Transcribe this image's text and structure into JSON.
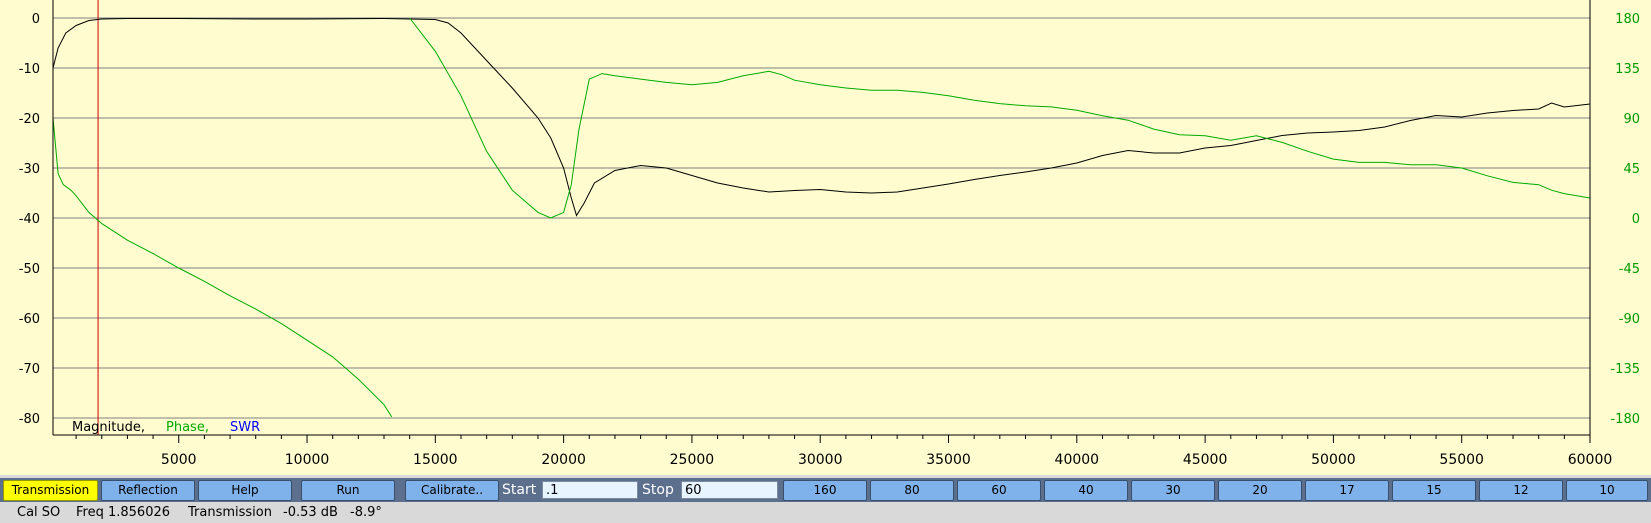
{
  "chart_data": {
    "type": "line",
    "title": "",
    "xlabel": "",
    "ylabel": "",
    "xlim": [
      100,
      60000
    ],
    "ylim": [
      -82,
      0
    ],
    "y2lim": [
      -184,
      184
    ],
    "x_ticks": [
      5000,
      10000,
      15000,
      20000,
      25000,
      30000,
      35000,
      40000,
      45000,
      50000,
      55000,
      60000
    ],
    "x_tick_labels": [
      "5000",
      "10000",
      "15000",
      "20000",
      "25000",
      "30000",
      "35000",
      "40000",
      "45000",
      "50000",
      "55000",
      "60000"
    ],
    "y_ticks": [
      0,
      -10,
      -20,
      -30,
      -40,
      -50,
      -60,
      -70,
      -80
    ],
    "y_tick_labels": [
      "0",
      "-10",
      "-20",
      "-30",
      "-40",
      "-50",
      "-60",
      "-70",
      "-80"
    ],
    "y2_ticks": [
      180,
      135,
      90,
      45,
      0,
      -45,
      -90,
      -135,
      -180
    ],
    "y2_tick_labels": [
      "180",
      "135",
      "90",
      "45",
      "0",
      "-45",
      "-90",
      "-135",
      "-180"
    ],
    "grid": true,
    "marker_x": 1856,
    "legend": [
      {
        "label": "Magnitude,",
        "color": "#000000"
      },
      {
        "label": "Phase,",
        "color": "#00aa00"
      },
      {
        "label": "SWR",
        "color": "#0000ff"
      }
    ],
    "series": [
      {
        "name": "Magnitude",
        "color": "#000000",
        "axis": "left",
        "x": [
          100,
          300,
          600,
          1000,
          1500,
          2000,
          3000,
          5000,
          8000,
          10000,
          13000,
          15000,
          15500,
          16000,
          17000,
          18000,
          19000,
          19500,
          20000,
          20300,
          20500,
          20800,
          21200,
          22000,
          23000,
          24000,
          25000,
          26000,
          27000,
          28000,
          29000,
          30000,
          31000,
          32000,
          33000,
          34000,
          35000,
          36000,
          37000,
          38000,
          39000,
          40000,
          41000,
          42000,
          43000,
          44000,
          45000,
          46000,
          47000,
          48000,
          49000,
          50000,
          51000,
          52000,
          53000,
          54000,
          55000,
          56000,
          57000,
          58000,
          58500,
          59000,
          60000
        ],
        "values": [
          -10,
          -6,
          -3,
          -1.5,
          -0.5,
          -0.2,
          -0.1,
          -0.1,
          -0.2,
          -0.2,
          -0.1,
          -0.3,
          -1,
          -3,
          -8.5,
          -14,
          -20,
          -24,
          -30,
          -36,
          -39.5,
          -37,
          -33,
          -30.5,
          -29.5,
          -30,
          -31.5,
          -33,
          -34,
          -34.8,
          -34.5,
          -34.3,
          -34.8,
          -35,
          -34.8,
          -34,
          -33.2,
          -32.3,
          -31.5,
          -30.8,
          -30,
          -29,
          -27.5,
          -26.5,
          -27,
          -27,
          -26,
          -25.5,
          -24.5,
          -23.5,
          -23,
          -22.8,
          -22.5,
          -21.8,
          -20.5,
          -19.5,
          -19.8,
          -19,
          -18.5,
          -18.2,
          -17,
          -17.8,
          -17.2
        ]
      },
      {
        "name": "Phase",
        "color": "#00aa00",
        "axis": "right",
        "x": [
          100,
          300,
          500,
          800,
          1000,
          1500,
          2000,
          3000,
          4000,
          5000,
          6000,
          7000,
          8000,
          9000,
          10000,
          11000,
          12000,
          13000,
          13300,
          14000,
          15000,
          16000,
          17000,
          18000,
          19000,
          19500,
          20000,
          20300,
          20600,
          21000,
          21500,
          22000,
          23000,
          24000,
          25000,
          26000,
          27000,
          28000,
          28500,
          29000,
          30000,
          31000,
          32000,
          33000,
          34000,
          35000,
          36000,
          37000,
          38000,
          39000,
          40000,
          41000,
          42000,
          43000,
          44000,
          45000,
          46000,
          47000,
          48000,
          49000,
          50000,
          51000,
          52000,
          53000,
          54000,
          55000,
          56000,
          57000,
          58000,
          58500,
          59000,
          60000
        ],
        "values": [
          90,
          40,
          30,
          25,
          20,
          5,
          -5,
          -20,
          -32,
          -45,
          -57,
          -70,
          -82,
          -95,
          -110,
          -125,
          -145,
          -168,
          -179,
          180,
          150,
          110,
          60,
          25,
          5,
          0,
          5,
          30,
          80,
          125,
          130,
          128,
          125,
          122,
          120,
          122,
          128,
          132,
          129,
          124,
          120,
          117,
          115,
          115,
          113,
          110,
          106,
          103,
          101,
          100,
          97,
          92,
          88,
          80,
          75,
          74,
          70,
          74,
          68,
          60,
          53,
          50,
          50,
          48,
          48,
          45,
          38,
          32,
          30,
          25,
          22,
          18
        ]
      }
    ]
  },
  "toolbar": {
    "transmission": "Transmission",
    "reflection": "Reflection",
    "help": "Help",
    "run": "Run",
    "calibrate": "Calibrate..",
    "start_label": "Start",
    "start_value": ".1",
    "stop_label": "Stop",
    "stop_value": "60",
    "band_buttons": [
      "160",
      "80",
      "60",
      "40",
      "30",
      "20",
      "17",
      "15",
      "12",
      "10"
    ]
  },
  "status": {
    "cal": "Cal SO",
    "freq": "Freq 1.856026",
    "mode": "Transmission",
    "mag": "-0.53 dB",
    "phase": "-8.9°"
  }
}
